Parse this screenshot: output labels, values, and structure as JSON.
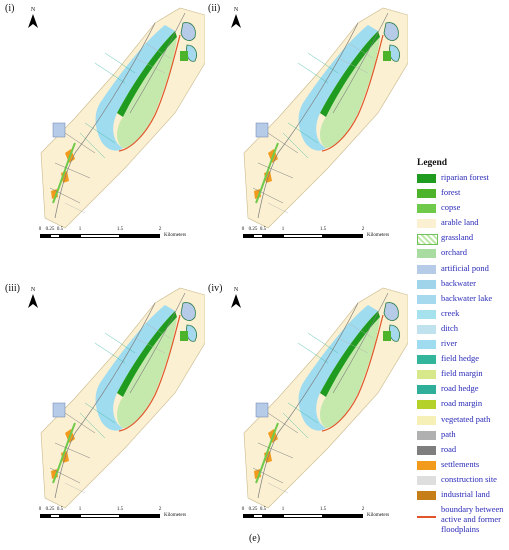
{
  "panels": [
    {
      "label": "(i)"
    },
    {
      "label": "(ii)"
    },
    {
      "label": "(iii)"
    },
    {
      "label": "(iv)"
    }
  ],
  "north_label": "N",
  "scale": {
    "ticks": [
      "0",
      "0.25",
      "0.5",
      "1",
      "1.5",
      "2"
    ],
    "unit": "Kilometers"
  },
  "legend": {
    "title": "Legend",
    "items": [
      {
        "label": "riparian forest",
        "color": "#1f9b1f"
      },
      {
        "label": "forest",
        "color": "#4cb32a"
      },
      {
        "label": "copse",
        "color": "#6fc94a"
      },
      {
        "label": "arable land",
        "color": "#fbf0d2"
      },
      {
        "label": "grassland",
        "color": "#bfe8a8",
        "pattern": "hatch"
      },
      {
        "label": "orchard",
        "color": "#a8dca0"
      },
      {
        "label": "artificial pond",
        "color": "#b6cbe8"
      },
      {
        "label": "backwater",
        "color": "#9fd4ea"
      },
      {
        "label": "backwater lake",
        "color": "#a6d8ee"
      },
      {
        "label": "creek",
        "color": "#a6e2ee"
      },
      {
        "label": "ditch",
        "color": "#bfe2ee"
      },
      {
        "label": "river",
        "color": "#9fdcf0"
      },
      {
        "label": "field hedge",
        "color": "#33b59b"
      },
      {
        "label": "field margin",
        "color": "#d6e88a"
      },
      {
        "label": "road hedge",
        "color": "#2fae9a"
      },
      {
        "label": "road margin",
        "color": "#b4d12a"
      },
      {
        "label": "vegetated path",
        "color": "#f7f0b6"
      },
      {
        "label": "path",
        "color": "#b0b0b0"
      },
      {
        "label": "road",
        "color": "#7e7e7e"
      },
      {
        "label": "settlements",
        "color": "#f29a1c"
      },
      {
        "label": "construction site",
        "color": "#dedede"
      },
      {
        "label": "industrial land",
        "color": "#c57e18"
      },
      {
        "label": "boundary between active and former floodplains",
        "color": "#e0552a",
        "line": true
      }
    ]
  },
  "caption": "(e)"
}
